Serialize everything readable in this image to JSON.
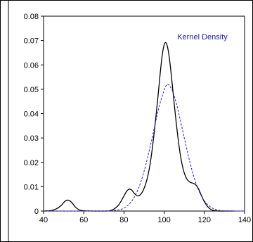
{
  "chart_data": {
    "type": "line",
    "title": "",
    "xlabel": "",
    "ylabel": "",
    "xlim": [
      40,
      140
    ],
    "ylim": [
      0,
      0.08
    ],
    "x_ticks": [
      40,
      60,
      80,
      100,
      120,
      140
    ],
    "y_ticks": [
      0,
      0.01,
      0.02,
      0.03,
      0.04,
      0.05,
      0.06,
      0.07,
      0.08
    ],
    "x_tick_labels": [
      "40",
      "60",
      "80",
      "100",
      "120",
      "140"
    ],
    "y_tick_labels": [
      "0",
      "0.01",
      "0.02",
      "0.03",
      "0.04",
      "0.05",
      "0.06",
      "0.07",
      "0.08"
    ],
    "grid": false,
    "legend": {
      "text": "Kernel Density",
      "placement": "top-right",
      "color": "#1a1a99"
    },
    "series": [
      {
        "name": "Kernel Density",
        "style": "solid",
        "color": "#000000",
        "x": [
          40,
          44,
          47,
          49,
          50,
          51,
          52,
          53,
          54,
          55,
          56,
          58,
          60,
          65,
          70,
          73,
          75,
          77,
          78,
          79,
          80,
          81,
          82,
          83,
          84,
          85,
          86,
          87,
          88,
          89,
          90,
          91,
          92,
          93,
          94,
          95,
          96,
          97,
          98,
          99,
          100,
          101,
          102,
          103,
          104,
          105,
          106,
          107,
          108,
          109,
          110,
          111,
          112,
          113,
          114,
          115,
          116,
          117,
          118,
          119,
          120,
          121,
          122,
          123,
          124,
          125,
          126,
          127,
          130,
          135
        ],
        "y": [
          0,
          0.0002,
          0.0012,
          0.0025,
          0.0035,
          0.0042,
          0.0045,
          0.0042,
          0.0035,
          0.0025,
          0.0015,
          0.0004,
          0.0001,
          0,
          0,
          0.0001,
          0.0008,
          0.0022,
          0.0033,
          0.0047,
          0.0062,
          0.0077,
          0.0087,
          0.009,
          0.0085,
          0.0074,
          0.0066,
          0.0062,
          0.0066,
          0.0076,
          0.0093,
          0.0117,
          0.0149,
          0.0193,
          0.0251,
          0.0319,
          0.0396,
          0.0477,
          0.0563,
          0.0638,
          0.0683,
          0.069,
          0.066,
          0.06,
          0.0522,
          0.044,
          0.0362,
          0.0292,
          0.0233,
          0.0188,
          0.0156,
          0.0136,
          0.0124,
          0.0118,
          0.0115,
          0.0112,
          0.0105,
          0.0093,
          0.0074,
          0.0055,
          0.0038,
          0.0025,
          0.0015,
          0.0008,
          0.0004,
          0.0002,
          0.0001,
          0,
          0,
          0
        ]
      },
      {
        "name": "",
        "style": "dashed",
        "color": "#2222cc",
        "x": [
          40,
          50,
          60,
          70,
          74,
          78,
          80,
          82,
          84,
          86,
          88,
          90,
          92,
          94,
          96,
          98,
          100,
          101,
          102,
          104,
          106,
          108,
          110,
          112,
          114,
          116,
          118,
          120,
          122,
          124,
          126,
          128,
          130,
          135,
          140
        ],
        "y": [
          0,
          0,
          0,
          0,
          0.0001,
          0.0006,
          0.0012,
          0.0024,
          0.0042,
          0.007,
          0.011,
          0.0163,
          0.0228,
          0.03,
          0.0375,
          0.0444,
          0.0496,
          0.0515,
          0.052,
          0.0496,
          0.0444,
          0.0375,
          0.03,
          0.0228,
          0.0163,
          0.011,
          0.007,
          0.0042,
          0.0024,
          0.0012,
          0.0006,
          0.0002,
          0.0001,
          0,
          0
        ]
      }
    ]
  }
}
